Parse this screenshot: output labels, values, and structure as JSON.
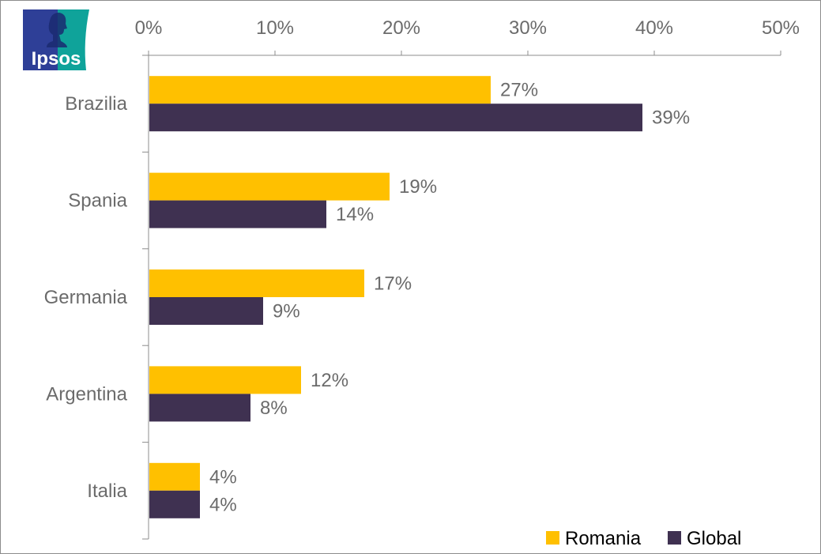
{
  "logo": {
    "text": "Ipsos",
    "colors": {
      "left": "#2E3F97",
      "right": "#0FA39A"
    }
  },
  "chart_data": {
    "type": "bar",
    "orientation": "horizontal",
    "title": "",
    "xlabel": "",
    "ylabel": "",
    "categories": [
      "Brazilia",
      "Spania",
      "Germania",
      "Argentina",
      "Italia"
    ],
    "series": [
      {
        "name": "Romania",
        "color": "#FFC000",
        "values": [
          27,
          19,
          17,
          12,
          4
        ],
        "labels": [
          "27%",
          "19%",
          "17%",
          "12%",
          "4%"
        ]
      },
      {
        "name": "Global",
        "color": "#3F3151",
        "values": [
          39,
          14,
          9,
          8,
          4
        ],
        "labels": [
          "39%",
          "14%",
          "9%",
          "8%",
          "4%"
        ]
      }
    ],
    "xlim": [
      0,
      50
    ],
    "xticks": [
      0,
      10,
      20,
      30,
      40,
      50
    ],
    "xtick_labels": [
      "0%",
      "10%",
      "20%",
      "30%",
      "40%",
      "50%"
    ],
    "x_axis_position": "top",
    "grid": false,
    "legend": {
      "position": "bottom-right",
      "entries": [
        "Romania",
        "Global"
      ]
    }
  }
}
